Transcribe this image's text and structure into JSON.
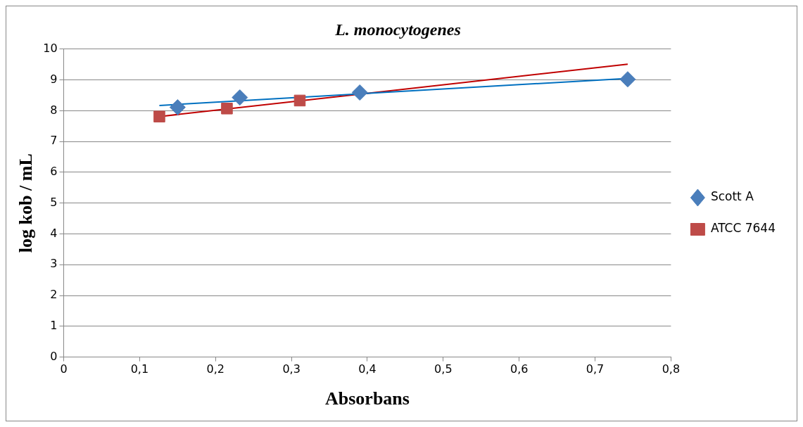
{
  "chart_data": {
    "type": "scatter",
    "title": "L. monocytogenes",
    "xlabel": "Absorbans",
    "ylabel": "log kob / mL",
    "xlim": [
      0,
      0.8
    ],
    "xticks": [
      0,
      {
        "value": 0.1,
        "label": "0,1"
      },
      {
        "value": 0.2,
        "label": "0,2"
      },
      {
        "value": 0.3,
        "label": "0,3"
      },
      {
        "value": 0.4,
        "label": "0,4"
      },
      {
        "value": 0.5,
        "label": "0,5"
      },
      {
        "value": 0.6,
        "label": "0,6"
      },
      {
        "value": 0.7,
        "label": "0,7"
      },
      {
        "value": 0.8,
        "label": "0,8"
      }
    ],
    "ylim": [
      0,
      10
    ],
    "yticks": [
      0,
      1,
      2,
      3,
      4,
      5,
      6,
      7,
      8,
      9,
      10
    ],
    "grid": "y",
    "legend": "right",
    "series": [
      {
        "name": "Scott A",
        "marker": "diamond",
        "color": "#4a7ebb",
        "x": [
          0.15,
          0.232,
          0.39,
          0.743
        ],
        "values": [
          8.11,
          8.43,
          8.59,
          9.02
        ]
      },
      {
        "name": "ATCC 7644",
        "marker": "square",
        "color": "#be4b48",
        "x": [
          0.126,
          0.215,
          0.311
        ],
        "values": [
          7.81,
          8.07,
          8.33
        ]
      },
      {
        "type": "line",
        "marker": "none",
        "color": "#0070c0",
        "x": [
          0.126,
          0.743
        ],
        "values": [
          8.17,
          9.05
        ]
      },
      {
        "type": "line",
        "marker": "none",
        "color": "#c00000",
        "x": [
          0.126,
          0.743
        ],
        "values": [
          7.81,
          9.51
        ]
      }
    ]
  }
}
